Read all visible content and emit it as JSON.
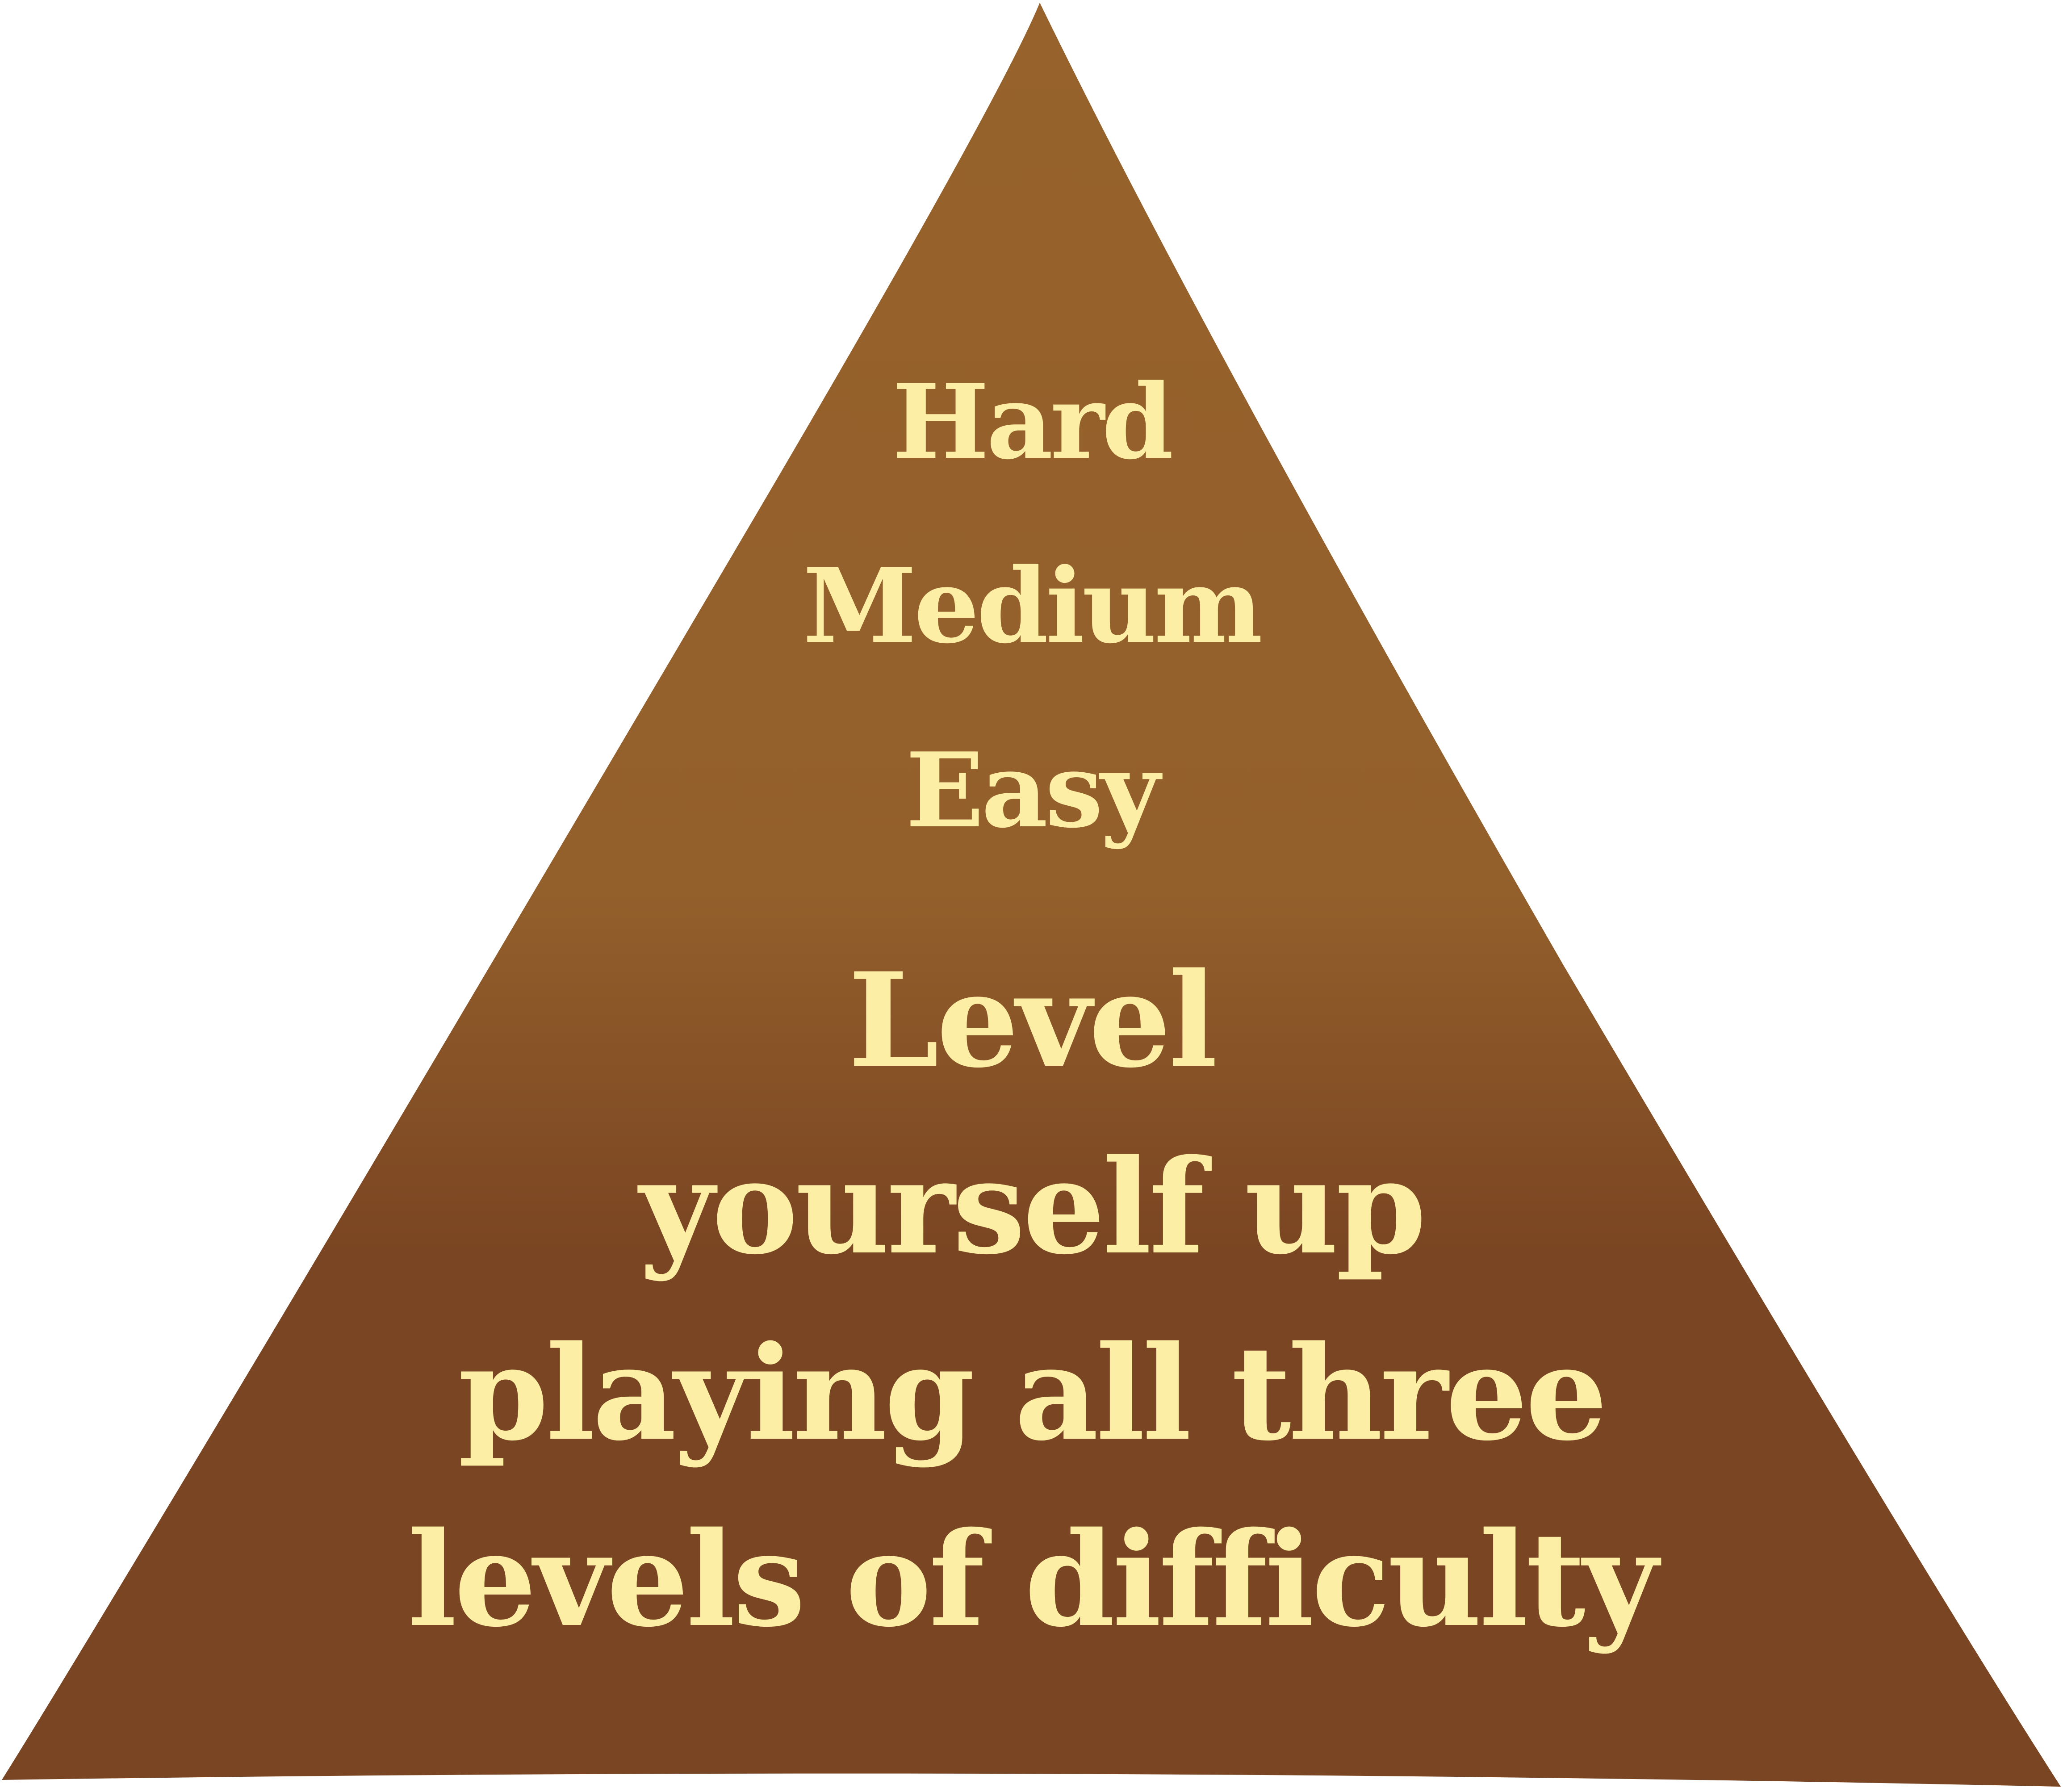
{
  "colors": {
    "pyramid_top": "#97622b",
    "pyramid_mid": "#935f2b",
    "pyramid_bottom": "#7a4522",
    "text": "#fdeea6",
    "background": "#ffffff"
  },
  "levels": [
    {
      "label": "Hard"
    },
    {
      "label": "Medium"
    },
    {
      "label": "Easy"
    }
  ],
  "message": {
    "line1": "Level",
    "line2": "yourself up",
    "line3": "playing all three",
    "line4": "levels of difficulty"
  }
}
